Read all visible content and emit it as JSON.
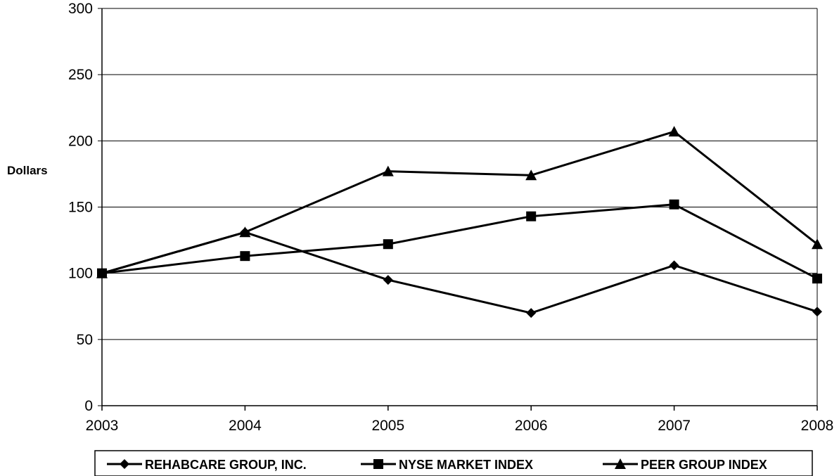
{
  "chart_data": {
    "type": "line",
    "title": "",
    "xlabel": "",
    "ylabel": "Dollars",
    "categories": [
      "2003",
      "2004",
      "2005",
      "2006",
      "2007",
      "2008"
    ],
    "ylim": [
      0,
      300
    ],
    "yticks": [
      "0",
      "50",
      "100",
      "150",
      "200",
      "250",
      "300"
    ],
    "grid": "horizontal",
    "legend_position": "bottom",
    "series": [
      {
        "name": "REHABCARE GROUP, INC.",
        "marker": "diamond",
        "values": [
          100,
          131,
          95,
          70,
          106,
          71
        ]
      },
      {
        "name": "NYSE MARKET INDEX",
        "marker": "square",
        "values": [
          100,
          113,
          122,
          143,
          152,
          96
        ]
      },
      {
        "name": "PEER GROUP INDEX",
        "marker": "triangle",
        "values": [
          100,
          131,
          177,
          174,
          207,
          122
        ]
      }
    ]
  }
}
